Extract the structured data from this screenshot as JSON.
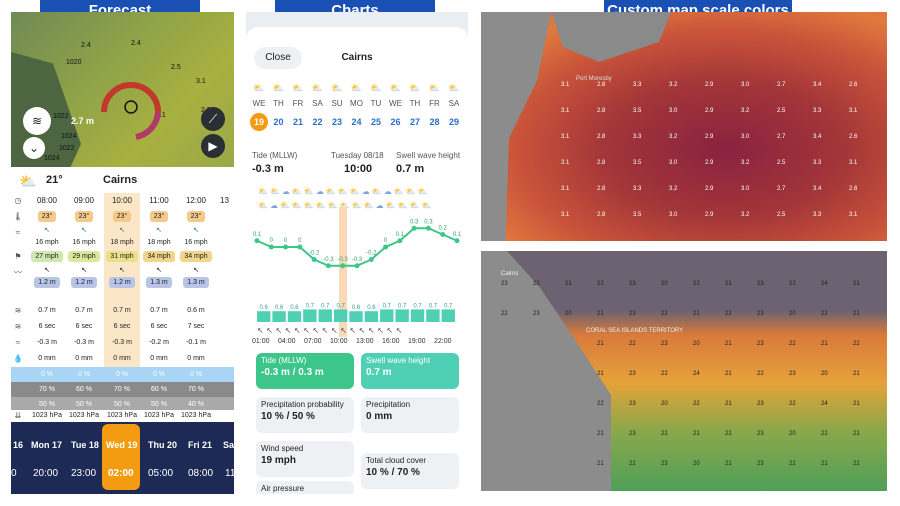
{
  "captions": {
    "forecast": "Forecast",
    "charts": "Charts",
    "maps": "Custom map scale colors"
  },
  "forecast": {
    "map_labels": [
      "2.4",
      "1020",
      "2.4",
      "3.1",
      "2.5",
      "3.1",
      "2.8",
      "2.7 m",
      "1022",
      "1024",
      "1022",
      "1024"
    ],
    "temp": "21°",
    "city": "Cairns",
    "times": [
      "08:00",
      "09:00",
      "10:00",
      "11:00",
      "12:00",
      "13"
    ],
    "temps": [
      "23°",
      "23°",
      "23°",
      "23°",
      "23°"
    ],
    "wind": [
      "16 mph",
      "16 mph",
      "18 mph",
      "18 mph",
      "16 mph"
    ],
    "gust": [
      "27 mph",
      "29 mph",
      "31 mph",
      "34 mph",
      "34 mph"
    ],
    "wave": [
      "1.2 m",
      "1.2 m",
      "1.2 m",
      "1.3 m",
      "1.3 m"
    ],
    "swell": [
      "0.7 m",
      "0.7 m",
      "0.7 m",
      "0.7 m",
      "0.6 m"
    ],
    "period": [
      "6 sec",
      "6 sec",
      "6 sec",
      "6 sec",
      "7 sec"
    ],
    "tide": [
      "-0.3 m",
      "-0.3 m",
      "-0.3 m",
      "-0.2 m",
      "-0.1 m"
    ],
    "rain": [
      "0 mm",
      "0 mm",
      "0 mm",
      "0 mm",
      "0 mm"
    ],
    "precip_prob": [
      "0 %",
      "0 %",
      "0 %",
      "0 %",
      "0 %"
    ],
    "cloud": [
      "70 %",
      "60 %",
      "70 %",
      "60 %",
      "70 %"
    ],
    "cloud2": [
      "50 %",
      "50 %",
      "50 %",
      "50 %",
      "40 %"
    ],
    "pressure": [
      "1023 hPa",
      "1023 hPa",
      "1023 hPa",
      "1023 hPa",
      "1023 hPa"
    ],
    "days": [
      "16",
      "Mon 17",
      "Tue 18",
      "Wed 19",
      "Thu 20",
      "Fri 21",
      "Sa"
    ],
    "daytimes": [
      "0",
      "20:00",
      "23:00",
      "02:00",
      "05:00",
      "08:00",
      "11"
    ]
  },
  "charts": {
    "close": "Close",
    "city": "Cairns",
    "weekdays": [
      "WE",
      "TH",
      "FR",
      "SA",
      "SU",
      "MO",
      "TU",
      "WE",
      "TH",
      "FR",
      "SA"
    ],
    "dates": [
      "19",
      "20",
      "21",
      "22",
      "23",
      "24",
      "25",
      "26",
      "27",
      "28",
      "29"
    ],
    "tide_label": "Tide (MLLW)",
    "tide_value": "-0.3 m",
    "date_label": "Tuesday 08/18",
    "date_time": "10:00",
    "swell_label": "Swell wave height",
    "swell_value": "0.7 m",
    "line_labels": [
      "0.1",
      "0",
      "0",
      "0",
      "-0.2",
      "-0.3",
      "-0.3",
      "-0.3",
      "-0.2",
      "0",
      "0.1",
      "0.3",
      "0.3",
      "0.2",
      "0.1"
    ],
    "bar_labels": [
      "0.6",
      "0.6",
      "0.6",
      "0.7",
      "0.7",
      "0.7",
      "0.6",
      "0.6",
      "0.7",
      "0.7",
      "0.7",
      "0.7",
      "0.7"
    ],
    "hours": [
      "01:00",
      "04:00",
      "07:00",
      "10:00",
      "13:00",
      "16:00",
      "19:00",
      "22:00"
    ],
    "cards": [
      {
        "title": "Tide (MLLW)",
        "value": "-0.3 m / 0.3 m"
      },
      {
        "title": "Swell wave height",
        "value": "0.7 m"
      },
      {
        "title": "Precipitation probability",
        "value": "10 % / 50 %"
      },
      {
        "title": "Precipitation",
        "value": "0 mm"
      },
      {
        "title": "Wind speed",
        "value": "19 mph"
      },
      {
        "title": "Total cloud cover",
        "value": "10 % / 70 %"
      },
      {
        "title": "Air pressure",
        "value": ""
      }
    ]
  },
  "maps": {
    "top_labels": [
      "3.1",
      "2.8",
      "3.3",
      "3.2",
      "2.9",
      "3.0",
      "2.7",
      "3.4",
      "2.6",
      "3.1",
      "2.8",
      "3.5",
      "3.0",
      "2.9",
      "3.2",
      "2.5",
      "3.3",
      "3.1"
    ],
    "bottom_labels": [
      "23",
      "22",
      "21",
      "22",
      "23",
      "20",
      "22",
      "21",
      "23",
      "22",
      "24",
      "21",
      "22",
      "23",
      "20",
      "21"
    ],
    "place1": "Port Moresby",
    "place2": "Cairns",
    "place3": "CORAL SEA ISLANDS TERRITORY"
  }
}
